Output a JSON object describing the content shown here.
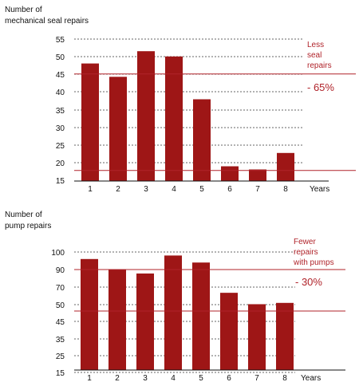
{
  "colors": {
    "bar": "#9e1616",
    "annotation": "#b0232a",
    "grid": "#333333"
  },
  "chart_data": [
    {
      "type": "bar",
      "ylabel": [
        "Number of",
        "mechanical seal repairs"
      ],
      "xlabel": "Years",
      "categories": [
        "1",
        "2",
        "3",
        "4",
        "5",
        "6",
        "7",
        "8"
      ],
      "values": [
        48.5,
        44.7,
        52,
        50.5,
        38.3,
        19.2,
        18.3,
        23
      ],
      "yticks": [
        "55",
        "50",
        "45",
        "40",
        "35",
        "30",
        "25",
        "20",
        "15"
      ],
      "ylim": [
        15,
        57
      ],
      "reference_lines": [
        45.5,
        18
      ],
      "annotation_lines": [
        "Less",
        "seal",
        "repairs"
      ],
      "change_label": "- 65%",
      "grid": "dotted horizontal"
    },
    {
      "type": "bar",
      "ylabel": [
        "Number of",
        "pump repairs"
      ],
      "xlabel": "Years",
      "categories": [
        "1",
        "2",
        "3",
        "4",
        "5",
        "6",
        "7",
        "8"
      ],
      "values": [
        96,
        90,
        85.5,
        98,
        94,
        63.5,
        50.5,
        52
      ],
      "yticks": [
        "100",
        "90",
        "70",
        "50",
        "45",
        "35",
        "25",
        "15"
      ],
      "annotation_lines": [
        "Fewer",
        "repairs",
        "with pumps"
      ],
      "change_label": "- 30%",
      "grid": "dotted horizontal"
    }
  ]
}
